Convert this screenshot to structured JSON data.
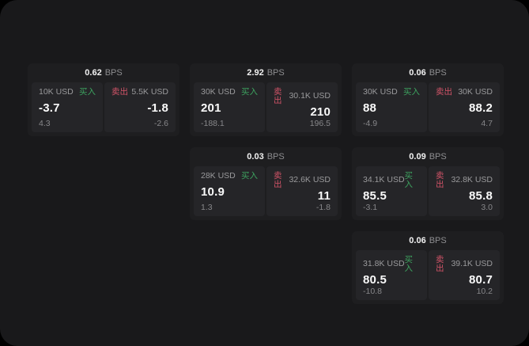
{
  "labels": {
    "bps_unit": "BPS",
    "buy": "买入",
    "sell": "卖出"
  },
  "colors": {
    "buy": "#3da35f",
    "sell": "#d15468",
    "page_bg": "#19191b",
    "card_bg": "#1e1e20",
    "panel_bg": "#252528"
  },
  "cards": [
    {
      "bps": "0.62",
      "buy": {
        "amount": "10K USD",
        "price": "-3.7",
        "change": "4.3"
      },
      "sell": {
        "amount": "5.5K USD",
        "price": "-1.8",
        "change": "-2.6"
      }
    },
    {
      "bps": "2.92",
      "buy": {
        "amount": "30K USD",
        "price": "201",
        "change": "-188.1"
      },
      "sell": {
        "amount": "30.1K USD",
        "price": "210",
        "change": "196.5"
      }
    },
    {
      "bps": "0.06",
      "buy": {
        "amount": "30K USD",
        "price": "88",
        "change": "-4.9"
      },
      "sell": {
        "amount": "30K USD",
        "price": "88.2",
        "change": "4.7"
      }
    },
    {
      "bps": "0.03",
      "buy": {
        "amount": "28K USD",
        "price": "10.9",
        "change": "1.3"
      },
      "sell": {
        "amount": "32.6K USD",
        "price": "11",
        "change": "-1.8"
      }
    },
    {
      "bps": "0.09",
      "buy": {
        "amount": "34.1K USD",
        "price": "85.5",
        "change": "-3.1"
      },
      "sell": {
        "amount": "32.8K USD",
        "price": "85.8",
        "change": "3.0"
      }
    },
    {
      "bps": "0.06",
      "buy": {
        "amount": "31.8K USD",
        "price": "80.5",
        "change": "-10.8"
      },
      "sell": {
        "amount": "39.1K USD",
        "price": "80.7",
        "change": "10.2"
      }
    }
  ]
}
